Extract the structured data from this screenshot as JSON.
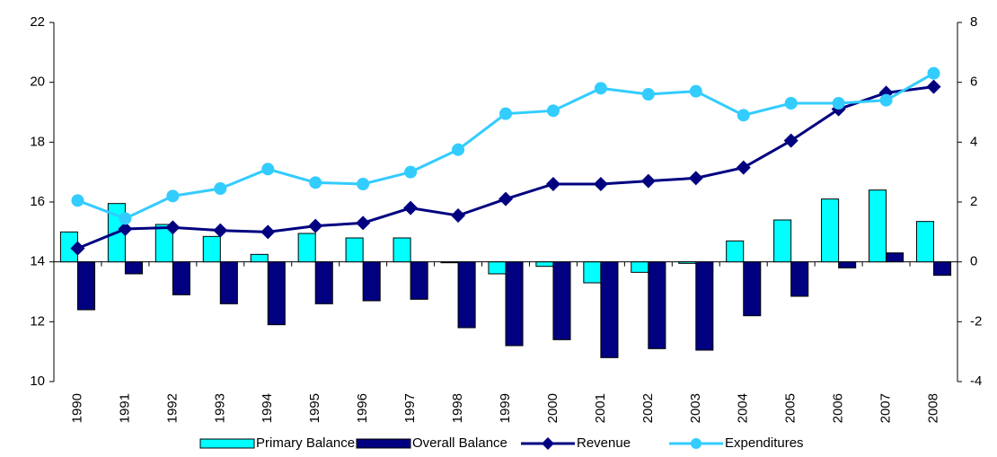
{
  "chart_data": {
    "type": "bar-line",
    "categories": [
      "1990",
      "1991",
      "1992",
      "1993",
      "1994",
      "1995",
      "1996",
      "1997",
      "1998",
      "1999",
      "2000",
      "2001",
      "2002",
      "2003",
      "2004",
      "2005",
      "2006",
      "2007",
      "2008"
    ],
    "ylim": [
      10,
      22
    ],
    "yticks": [
      10,
      12,
      14,
      16,
      18,
      20,
      22
    ],
    "y2lim": [
      -4,
      8
    ],
    "y2ticks": [
      -4,
      -2,
      0,
      2,
      4,
      6,
      8
    ],
    "legend": "bottom",
    "series": [
      {
        "name": "Primary Balance",
        "type": "bar",
        "axis": "y2",
        "color": "#00ffff",
        "values": [
          1.0,
          1.95,
          1.25,
          0.85,
          0.25,
          0.95,
          0.8,
          0.8,
          -0.03,
          -0.4,
          -0.15,
          -0.7,
          -0.35,
          -0.05,
          0.7,
          1.4,
          2.1,
          2.4,
          1.35
        ]
      },
      {
        "name": "Overall Balance",
        "type": "bar",
        "axis": "y2",
        "color": "#000080",
        "values": [
          -1.6,
          -0.4,
          -1.1,
          -1.4,
          -2.1,
          -1.4,
          -1.3,
          -1.25,
          -2.2,
          -2.8,
          -2.6,
          -3.2,
          -2.9,
          -2.95,
          -1.8,
          -1.15,
          -0.2,
          0.3,
          -0.45
        ]
      },
      {
        "name": "Revenue",
        "type": "line",
        "marker": "diamond",
        "color": "#000080",
        "values": [
          14.45,
          15.1,
          15.15,
          15.05,
          15.0,
          15.2,
          15.3,
          15.8,
          15.55,
          16.1,
          16.6,
          16.6,
          16.7,
          16.8,
          17.15,
          18.05,
          19.1,
          19.65,
          19.85
        ]
      },
      {
        "name": "Expenditures",
        "type": "line",
        "marker": "circle",
        "color": "#33ccff",
        "values": [
          16.05,
          15.45,
          16.2,
          16.45,
          17.1,
          16.65,
          16.6,
          17.0,
          17.75,
          18.95,
          19.05,
          19.8,
          19.6,
          19.7,
          18.9,
          19.3,
          19.3,
          19.4,
          20.3
        ]
      }
    ]
  }
}
